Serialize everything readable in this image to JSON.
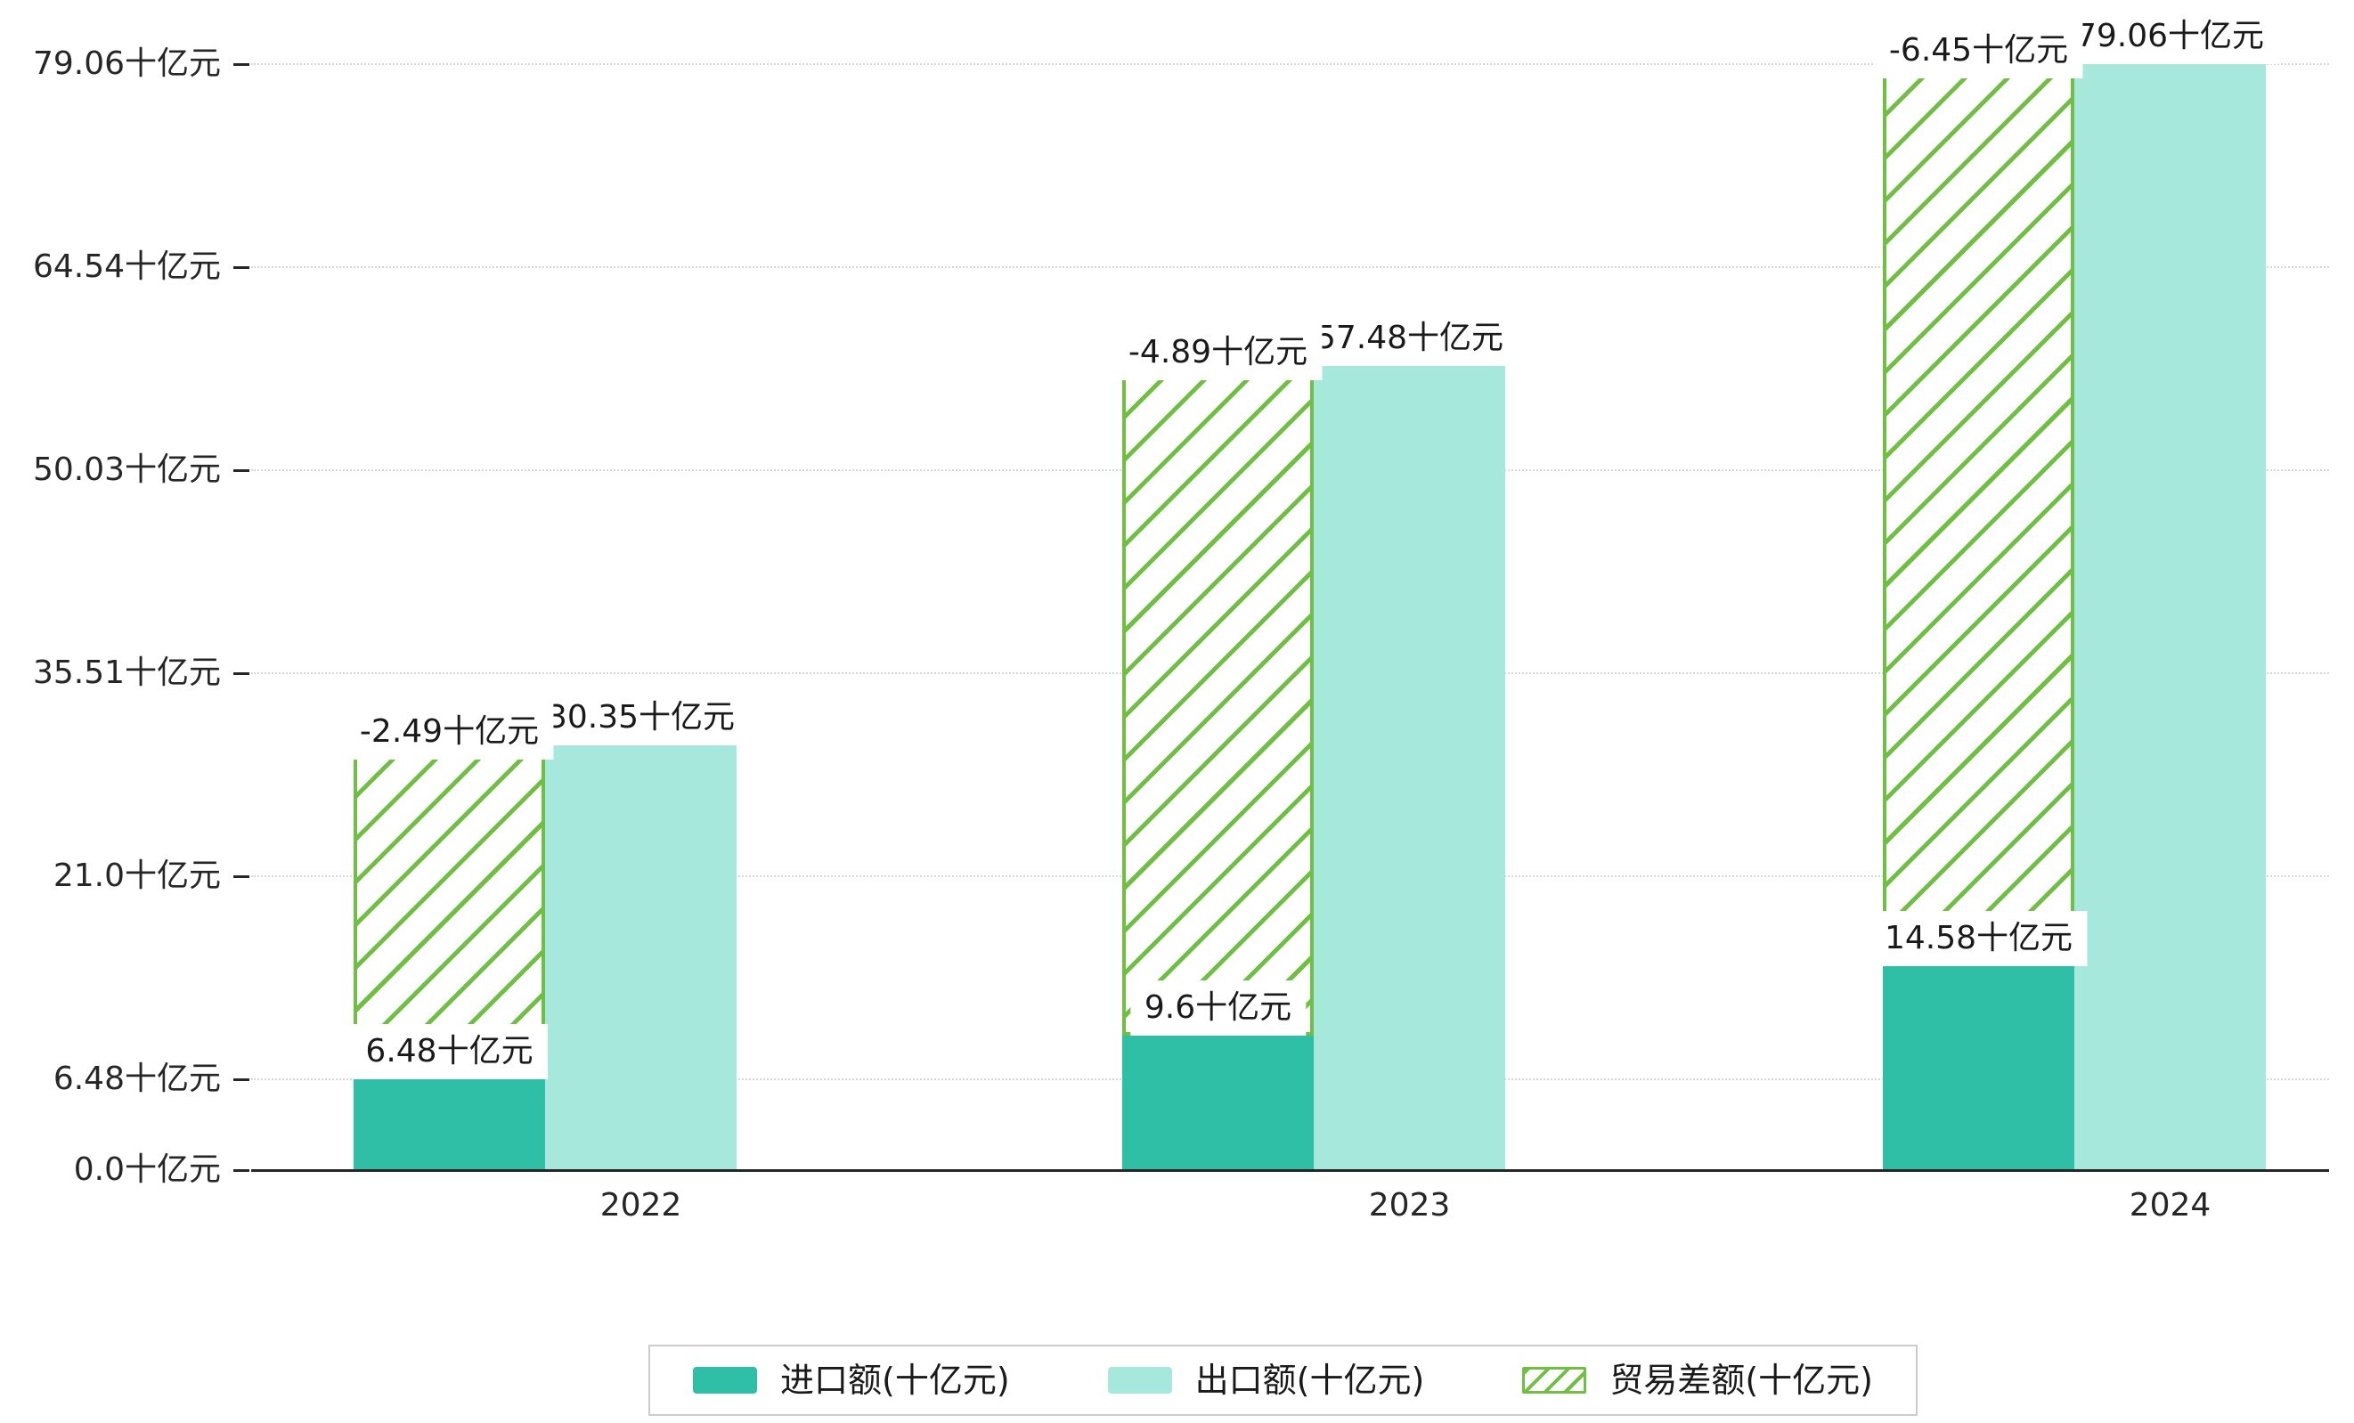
{
  "chart_data": {
    "type": "bar",
    "title": "",
    "xlabel": "",
    "ylabel": "十亿元",
    "categories": [
      "2022",
      "2023",
      "2024"
    ],
    "series": [
      {
        "name": "进口额(十亿元)",
        "values": [
          6.48,
          9.6,
          14.58
        ],
        "labels": [
          "6.48十亿元",
          "9.6十亿元",
          "14.58十亿元"
        ],
        "color": "#2fbfa7",
        "style": "solid"
      },
      {
        "name": "出口额(十亿元)",
        "values": [
          30.35,
          57.48,
          79.06
        ],
        "labels": [
          "30.35十亿元",
          "57.48十亿元",
          "79.06十亿元"
        ],
        "color": "#a7e8dd",
        "style": "solid"
      },
      {
        "name": "贸易差额(十亿元)",
        "values": [
          -2.49,
          -4.89,
          -6.45
        ],
        "labels": [
          "-2.49十亿元",
          "-4.89十亿元",
          "-6.45十亿元"
        ],
        "color": "#70bf44",
        "style": "hatched-range-between-import-and-export"
      }
    ],
    "y_axis": {
      "unit": "十亿元",
      "ticks": [
        {
          "value": 0.0,
          "label": "0.0十亿元"
        },
        {
          "value": 6.48,
          "label": "6.48十亿元"
        },
        {
          "value": 21.0,
          "label": "21.0十亿元"
        },
        {
          "value": 35.51,
          "label": "35.51十亿元"
        },
        {
          "value": 50.03,
          "label": "50.03十亿元"
        },
        {
          "value": 64.54,
          "label": "64.54十亿元"
        },
        {
          "value": 79.06,
          "label": "79.06十亿元"
        }
      ],
      "range": [
        0,
        79.06
      ]
    },
    "x_axis": {
      "ticks": [
        "2022",
        "2023",
        "2024"
      ]
    },
    "grid": true,
    "legend_position": "bottom-center"
  },
  "colors": {
    "import_bar": "#2fbfa7",
    "export_bar": "#a7e8dd",
    "balance_hatch": "#70bf44",
    "axis": "#262626",
    "gridline": "#d8d8d8",
    "label_background": "#ffffff"
  }
}
